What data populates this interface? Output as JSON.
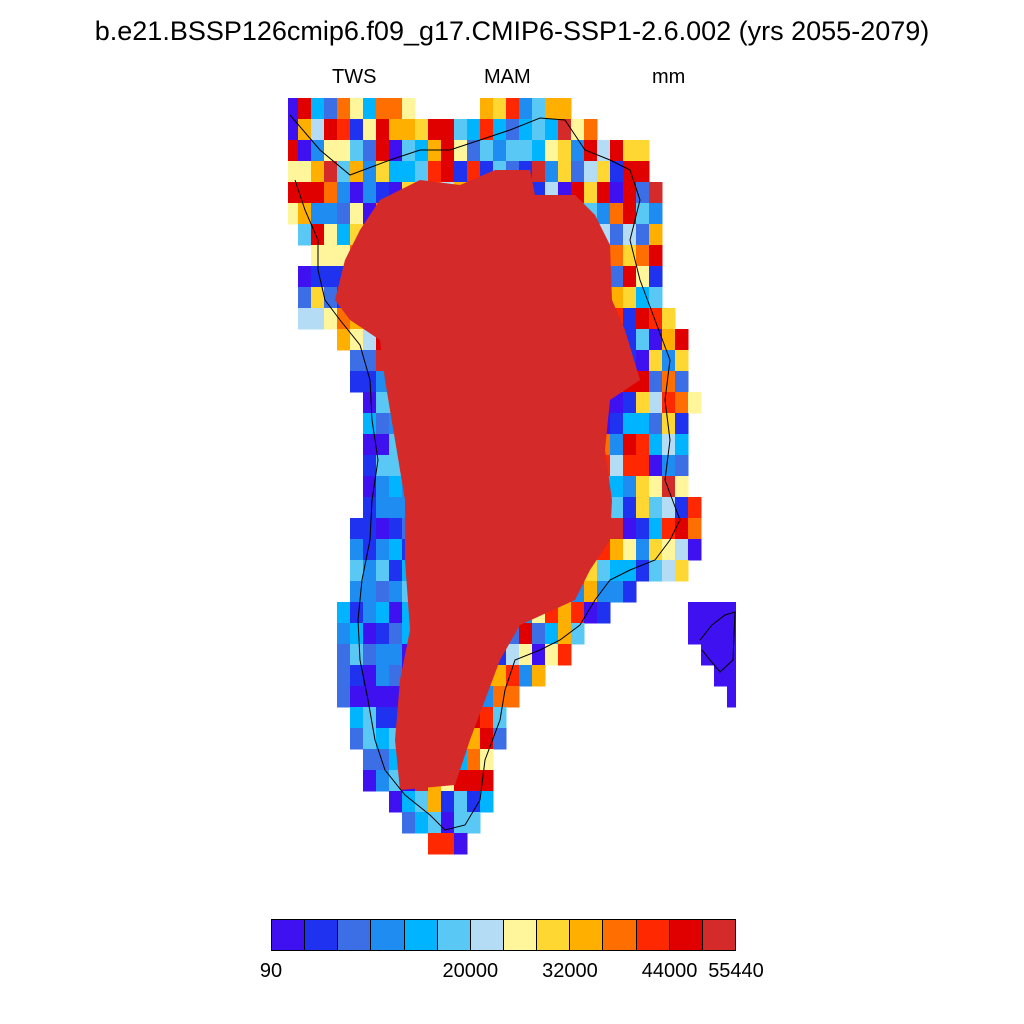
{
  "figure": {
    "title": "b.e21.BSSP126cmip6.f09_g17.CMIP6-SSP1-2.6.002 (yrs 2055-2079)",
    "left_label": "TWS",
    "center_label": "MAM",
    "right_label": "mm"
  },
  "colorbar": {
    "colors": [
      "#3f10f0",
      "#1e32f0",
      "#3c6ee6",
      "#1e8cf0",
      "#00b4ff",
      "#5ac8f5",
      "#b4dcf5",
      "#fff59b",
      "#ffd732",
      "#ffaf00",
      "#ff6e00",
      "#ff2800",
      "#e10000",
      "#d42a2a"
    ],
    "labels": [
      "90",
      "20000",
      "32000",
      "44000",
      "55440"
    ],
    "label_positions": [
      0,
      6,
      9,
      12,
      14
    ]
  },
  "chart_data": {
    "type": "heatmap",
    "title": "b.e21.BSSP126cmip6.f09_g17.CMIP6-SSP1-2.6.002 (yrs 2055-2079)",
    "variable": "TWS",
    "season": "MAM",
    "units": "mm",
    "value_range": [
      90,
      55440
    ],
    "legend_placement": "bottom"
  }
}
